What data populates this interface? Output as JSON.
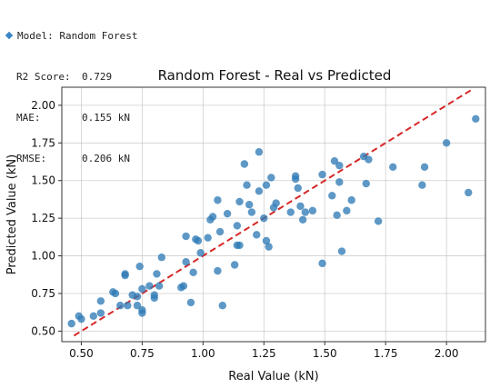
{
  "metrics": {
    "model_label": "Model:",
    "model_value": "Random Forest",
    "r2_label": "R2 Score:",
    "r2_value": "0.729",
    "mae_label": "MAE:",
    "mae_value": "0.155 kN",
    "rmse_label": "RMSE:",
    "rmse_value": "0.206 kN"
  },
  "chart_data": {
    "type": "scatter",
    "title": "Random Forest - Real vs Predicted",
    "xlabel": "Real Value (kN)",
    "ylabel": "Predicted Value (kN)",
    "xlim": [
      0.42,
      2.16
    ],
    "ylim": [
      0.43,
      2.12
    ],
    "xticks": [
      0.5,
      0.75,
      1.0,
      1.25,
      1.5,
      1.75,
      2.0
    ],
    "xtick_labels": [
      "0.50",
      "0.75",
      "1.00",
      "1.25",
      "1.50",
      "1.75",
      "2.00"
    ],
    "yticks": [
      0.5,
      0.75,
      1.0,
      1.25,
      1.5,
      1.75,
      2.0
    ],
    "ytick_labels": [
      "0.50",
      "0.75",
      "1.00",
      "1.25",
      "1.50",
      "1.75",
      "2.00"
    ],
    "grid": true,
    "point_color": "#2f7bb6",
    "reference_line": {
      "from": [
        0.47,
        0.47
      ],
      "to": [
        2.11,
        2.11
      ],
      "color": "#d62728",
      "style": "dashed"
    },
    "points": [
      [
        0.46,
        0.55
      ],
      [
        0.49,
        0.6
      ],
      [
        0.5,
        0.58
      ],
      [
        0.55,
        0.6
      ],
      [
        0.58,
        0.62
      ],
      [
        0.58,
        0.7
      ],
      [
        0.63,
        0.76
      ],
      [
        0.64,
        0.75
      ],
      [
        0.66,
        0.67
      ],
      [
        0.68,
        0.88
      ],
      [
        0.68,
        0.87
      ],
      [
        0.69,
        0.67
      ],
      [
        0.71,
        0.74
      ],
      [
        0.73,
        0.67
      ],
      [
        0.73,
        0.73
      ],
      [
        0.74,
        0.93
      ],
      [
        0.75,
        0.64
      ],
      [
        0.75,
        0.62
      ],
      [
        0.75,
        0.78
      ],
      [
        0.78,
        0.8
      ],
      [
        0.8,
        0.74
      ],
      [
        0.8,
        0.72
      ],
      [
        0.81,
        0.88
      ],
      [
        0.82,
        0.8
      ],
      [
        0.83,
        0.99
      ],
      [
        0.91,
        0.79
      ],
      [
        0.92,
        0.8
      ],
      [
        0.93,
        0.96
      ],
      [
        0.93,
        1.13
      ],
      [
        0.95,
        0.69
      ],
      [
        0.96,
        0.89
      ],
      [
        0.97,
        1.11
      ],
      [
        0.98,
        1.1
      ],
      [
        0.99,
        1.02
      ],
      [
        1.02,
        1.12
      ],
      [
        1.03,
        1.24
      ],
      [
        1.04,
        1.26
      ],
      [
        1.06,
        0.9
      ],
      [
        1.06,
        1.37
      ],
      [
        1.07,
        1.16
      ],
      [
        1.08,
        0.67
      ],
      [
        1.1,
        1.28
      ],
      [
        1.13,
        0.94
      ],
      [
        1.14,
        1.07
      ],
      [
        1.14,
        1.2
      ],
      [
        1.15,
        1.07
      ],
      [
        1.15,
        1.36
      ],
      [
        1.17,
        1.61
      ],
      [
        1.18,
        1.47
      ],
      [
        1.19,
        1.34
      ],
      [
        1.2,
        1.29
      ],
      [
        1.22,
        1.14
      ],
      [
        1.23,
        1.69
      ],
      [
        1.23,
        1.43
      ],
      [
        1.25,
        1.25
      ],
      [
        1.26,
        1.1
      ],
      [
        1.26,
        1.47
      ],
      [
        1.27,
        1.06
      ],
      [
        1.28,
        1.52
      ],
      [
        1.29,
        1.32
      ],
      [
        1.3,
        1.35
      ],
      [
        1.36,
        1.29
      ],
      [
        1.38,
        1.53
      ],
      [
        1.38,
        1.51
      ],
      [
        1.39,
        1.45
      ],
      [
        1.4,
        1.33
      ],
      [
        1.41,
        1.24
      ],
      [
        1.42,
        1.29
      ],
      [
        1.45,
        1.3
      ],
      [
        1.49,
        0.95
      ],
      [
        1.49,
        1.54
      ],
      [
        1.53,
        1.4
      ],
      [
        1.54,
        1.63
      ],
      [
        1.55,
        1.27
      ],
      [
        1.56,
        1.49
      ],
      [
        1.56,
        1.6
      ],
      [
        1.57,
        1.03
      ],
      [
        1.59,
        1.3
      ],
      [
        1.61,
        1.37
      ],
      [
        1.66,
        1.66
      ],
      [
        1.67,
        1.48
      ],
      [
        1.68,
        1.64
      ],
      [
        1.72,
        1.23
      ],
      [
        1.78,
        1.59
      ],
      [
        1.9,
        1.47
      ],
      [
        1.91,
        1.59
      ],
      [
        2.0,
        1.75
      ],
      [
        2.09,
        1.42
      ],
      [
        2.12,
        1.91
      ]
    ]
  }
}
